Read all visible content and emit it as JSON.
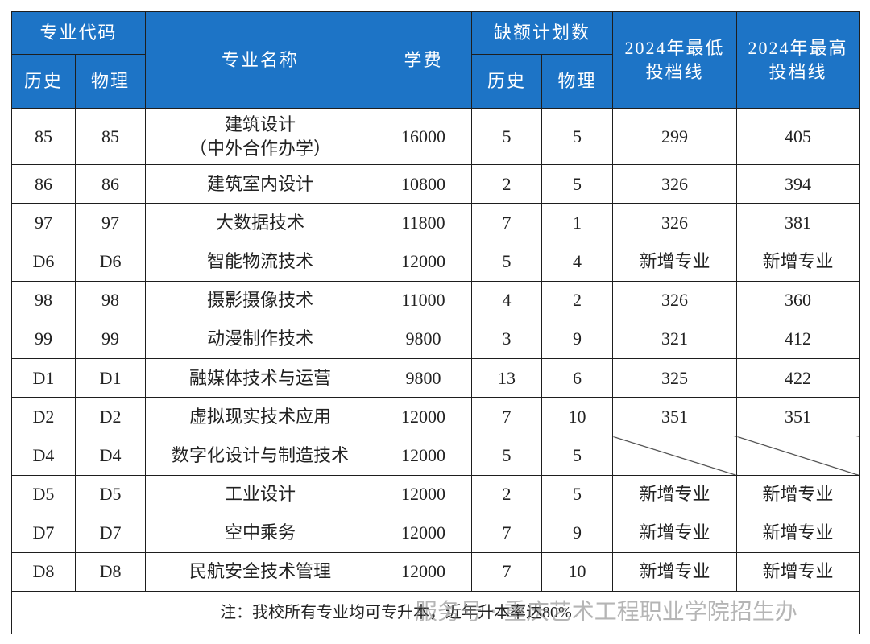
{
  "header": {
    "code": "专业代码",
    "code_history": "历史",
    "code_physics": "物理",
    "name": "专业名称",
    "fee": "学费",
    "plan": "缺额计划数",
    "plan_history": "历史",
    "plan_physics": "物理",
    "min_score": [
      "2024年最低",
      "投档线"
    ],
    "max_score": [
      "2024年最高",
      "投档线"
    ]
  },
  "table": {
    "rows": [
      [
        "85",
        "85",
        [
          "建筑设计",
          "（中外合作办学）"
        ],
        "16000",
        "5",
        "5",
        "299",
        "405"
      ],
      [
        "86",
        "86",
        [
          "建筑室内设计"
        ],
        "10800",
        "2",
        "5",
        "326",
        "394"
      ],
      [
        "97",
        "97",
        [
          "大数据技术"
        ],
        "11800",
        "7",
        "1",
        "326",
        "381"
      ],
      [
        "D6",
        "D6",
        [
          "智能物流技术"
        ],
        "12000",
        "5",
        "4",
        "新增专业",
        "新增专业"
      ],
      [
        "98",
        "98",
        [
          "摄影摄像技术"
        ],
        "11000",
        "4",
        "2",
        "326",
        "360"
      ],
      [
        "99",
        "99",
        [
          "动漫制作技术"
        ],
        "9800",
        "3",
        "9",
        "321",
        "412"
      ],
      [
        "D1",
        "D1",
        [
          "融媒体技术与运营"
        ],
        "9800",
        "13",
        "6",
        "325",
        "422"
      ],
      [
        "D2",
        "D2",
        [
          "虚拟现实技术应用"
        ],
        "12000",
        "7",
        "10",
        "351",
        "351"
      ],
      [
        "D4",
        "D4",
        [
          "数字化设计与制造技术"
        ],
        "12000",
        "5",
        "5",
        null,
        null
      ],
      [
        "D5",
        "D5",
        [
          "工业设计"
        ],
        "12000",
        "2",
        "5",
        "新增专业",
        "新增专业"
      ],
      [
        "D7",
        "D7",
        [
          "空中乘务"
        ],
        "12000",
        "7",
        "9",
        "新增专业",
        "新增专业"
      ],
      [
        "D8",
        "D8",
        [
          "民航安全技术管理"
        ],
        "12000",
        "7",
        "10",
        "新增专业",
        "新增专业"
      ]
    ]
  },
  "footer": {
    "note": "注：我校所有专业均可专升本，近年升本率达80%",
    "watermark": "服务号 · 重庆艺术工程职业学院招生办"
  }
}
